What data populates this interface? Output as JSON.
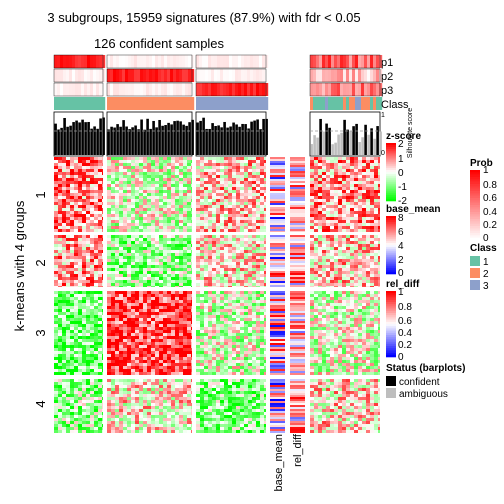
{
  "chart_data": {
    "type": "heatmap",
    "title": "3 subgroups, 15959 signatures (87.9%) with fdr < 0.05",
    "subtitle": "126 confident samples",
    "row_title": "k-means with 4 groups",
    "row_groups": [
      "1",
      "2",
      "3",
      "4"
    ],
    "annotation_rows": [
      "p1",
      "p2",
      "p3",
      "Class"
    ],
    "silhouette_label": "Silhouette score",
    "silhouette_ticks": [
      "0",
      "1"
    ],
    "row_annotations": [
      "base_mean",
      "rel_diff"
    ],
    "legends": {
      "zscore": {
        "title": "z-score",
        "ticks": [
          "2",
          "1",
          "0",
          "-1",
          "-2"
        ],
        "colors": [
          "#ff0000",
          "#ffffff",
          "#00ff00"
        ]
      },
      "base_mean": {
        "title": "base_mean",
        "ticks": [
          "8",
          "6",
          "4",
          "2",
          "0"
        ],
        "colors": [
          "#ff0000",
          "#ffffff",
          "#0000ff"
        ]
      },
      "rel_diff": {
        "title": "rel_diff",
        "ticks": [
          "1",
          "0.8",
          "0.6",
          "0.4",
          "0.2",
          "0"
        ],
        "colors": [
          "#ff0000",
          "#ffffff",
          "#0000ff"
        ]
      },
      "prob": {
        "title": "Prob",
        "ticks": [
          "1",
          "0.8",
          "0.6",
          "0.4",
          "0.2",
          "0"
        ],
        "colors": [
          "#ff0000",
          "#ffffff"
        ]
      },
      "class": {
        "title": "Class",
        "items": [
          {
            "label": "1",
            "color": "#66c2a5"
          },
          {
            "label": "2",
            "color": "#fc8d62"
          },
          {
            "label": "3",
            "color": "#8da0cb"
          }
        ]
      },
      "status": {
        "title": "Status (barplots)",
        "items": [
          {
            "label": "confident",
            "color": "#000000"
          },
          {
            "label": "ambiguous",
            "color": "#bebebe"
          }
        ]
      }
    }
  }
}
